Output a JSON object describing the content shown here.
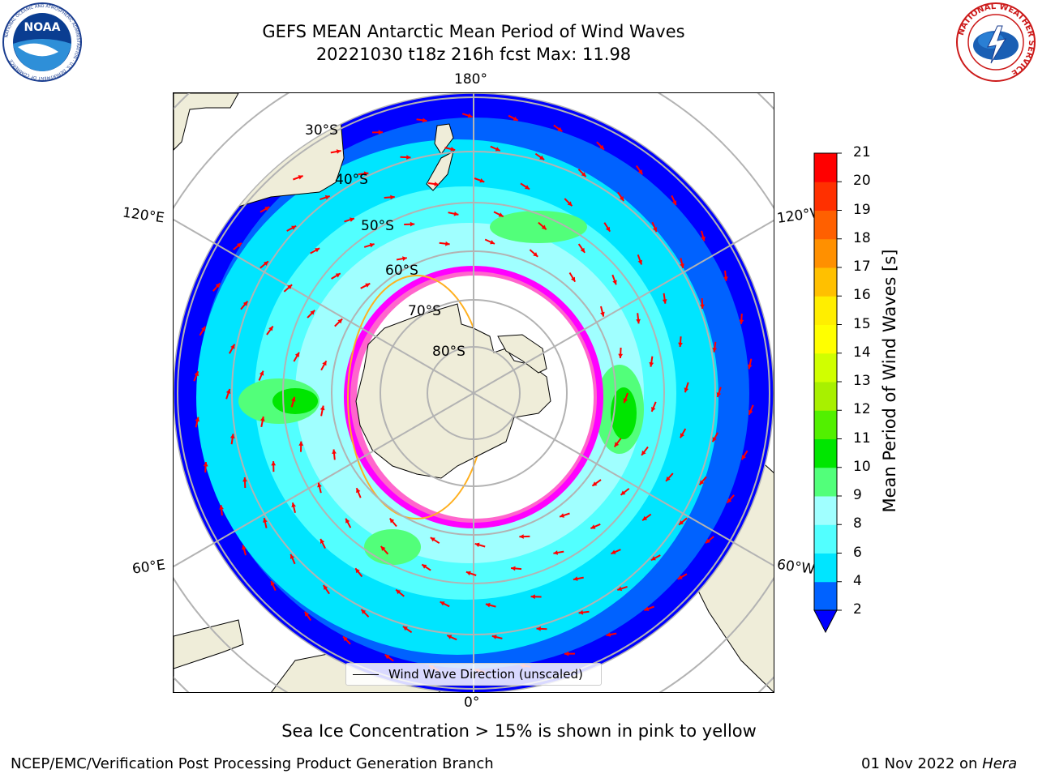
{
  "header": {
    "title": "GEFS MEAN Antarctic Mean Period of Wind Waves",
    "subtitle": "20221030 t18z 216h fcst   Max: 11.98"
  },
  "logos": {
    "left": "NOAA",
    "left_ring_text": "NATIONAL OCEANIC AND ATMOSPHERIC ADMINISTRATION · U.S. DEPARTMENT OF COMMERCE",
    "right_ring_text": "NATIONAL WEATHER SERVICE"
  },
  "map": {
    "projection": "south-polar-stereographic",
    "longitude_labels": {
      "top": "180°",
      "bottom": "0°",
      "left_upper": "120°E",
      "left_lower": "60°E",
      "right_upper": "120°W",
      "right_lower": "60°W"
    },
    "latitude_labels": [
      "30°S",
      "40°S",
      "50°S",
      "60°S",
      "70°S",
      "80°S"
    ],
    "colors": {
      "land": "#efedd9",
      "grid": "#b3b3b3",
      "arrows": "#ff0000",
      "sea_ice": [
        "#ff00ff",
        "#ff66cc",
        "#ffb020",
        "#ffe000"
      ]
    }
  },
  "legend": {
    "label": "Wind Wave Direction (unscaled)"
  },
  "colorbar": {
    "label": "Mean Period of Wind Waves [s]",
    "ticks": [
      "2",
      "4",
      "6",
      "8",
      "9",
      "10",
      "11",
      "12",
      "13",
      "14",
      "15",
      "16",
      "17",
      "18",
      "19",
      "20",
      "21"
    ],
    "colors": [
      "#0062ff",
      "#00e5ff",
      "#52ffff",
      "#a0ffff",
      "#52ff7a",
      "#00e600",
      "#52f000",
      "#a8f000",
      "#d0ff00",
      "#ffff00",
      "#ffee00",
      "#ffc000",
      "#ff9000",
      "#ff6000",
      "#ff3000",
      "#ff0000"
    ],
    "extend_color": "#0000ff"
  },
  "footnote": "Sea Ice Concentration > 15% is shown in pink to yellow",
  "footer": {
    "left": "NCEP/EMC/Verification Post Processing Product Generation Branch",
    "right_prefix": "01 Nov 2022 on ",
    "right_host": "Hera"
  }
}
